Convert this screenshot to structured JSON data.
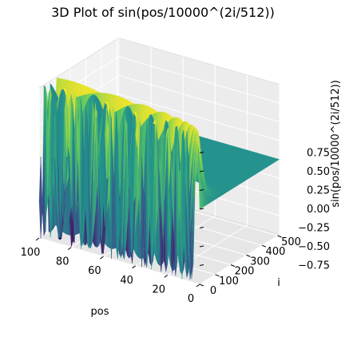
{
  "chart_data": {
    "type": "surface3d",
    "title": "3D Plot of sin(pos/10000^(2i/512))",
    "xlabel": "pos",
    "ylabel": "i",
    "zlabel": "sin(pos/10000^(2i/512))",
    "formula": "z = sin(pos / 10000^(2*i/512))",
    "x_range": [
      0,
      100
    ],
    "y_range": [
      0,
      512
    ],
    "z_range": [
      -1,
      1
    ],
    "x_ticks": [
      0,
      20,
      40,
      60,
      80,
      100
    ],
    "y_ticks": [
      0,
      100,
      200,
      300,
      400,
      500
    ],
    "z_ticks": [
      -0.75,
      -0.5,
      -0.25,
      0.0,
      0.25,
      0.5,
      0.75
    ],
    "x_tick_labels": [
      "0",
      "20",
      "40",
      "60",
      "80",
      "100"
    ],
    "y_tick_labels": [
      "0",
      "100",
      "200",
      "300",
      "400",
      "500"
    ],
    "z_tick_labels": [
      "−0.75",
      "−0.50",
      "−0.25",
      "0.00",
      "0.25",
      "0.50",
      "0.75"
    ],
    "colormap": "viridis",
    "grid": true
  }
}
